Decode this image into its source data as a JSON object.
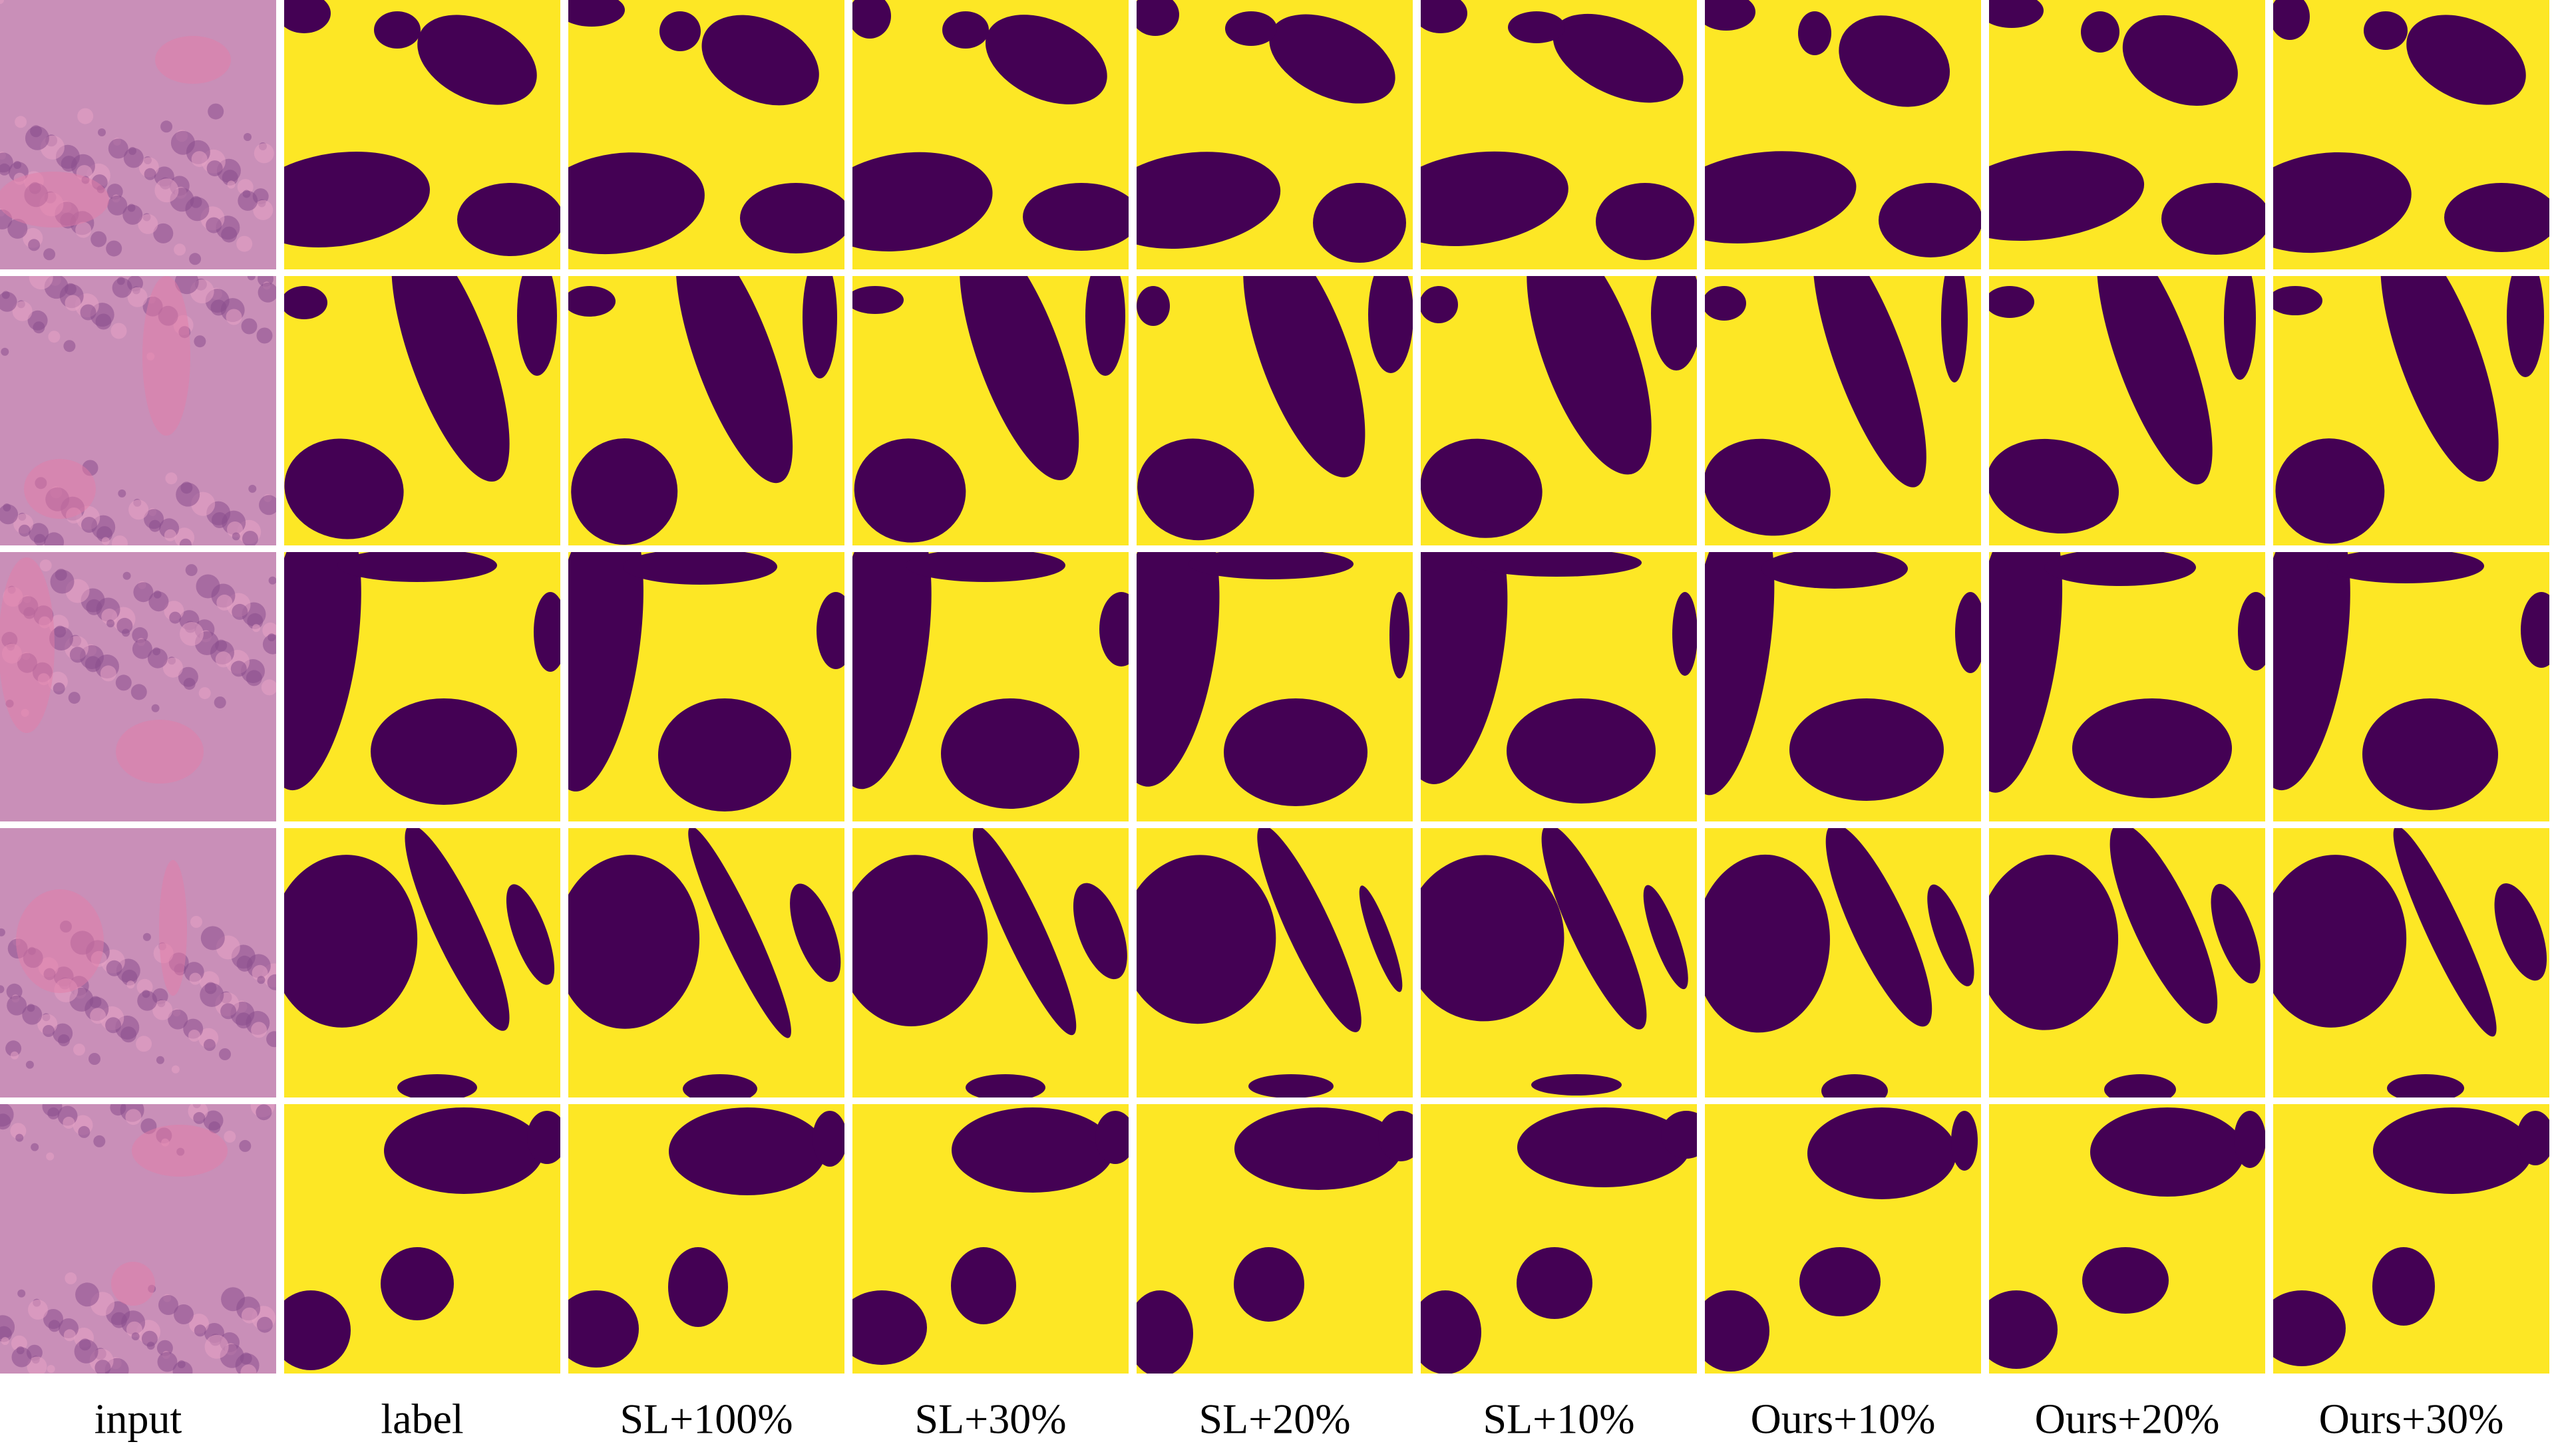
{
  "columns": [
    "input",
    "label",
    "SL+100%",
    "SL+30%",
    "SL+20%",
    "SL+10%",
    "Ours+10%",
    "Ours+20%",
    "Ours+30%"
  ]
}
